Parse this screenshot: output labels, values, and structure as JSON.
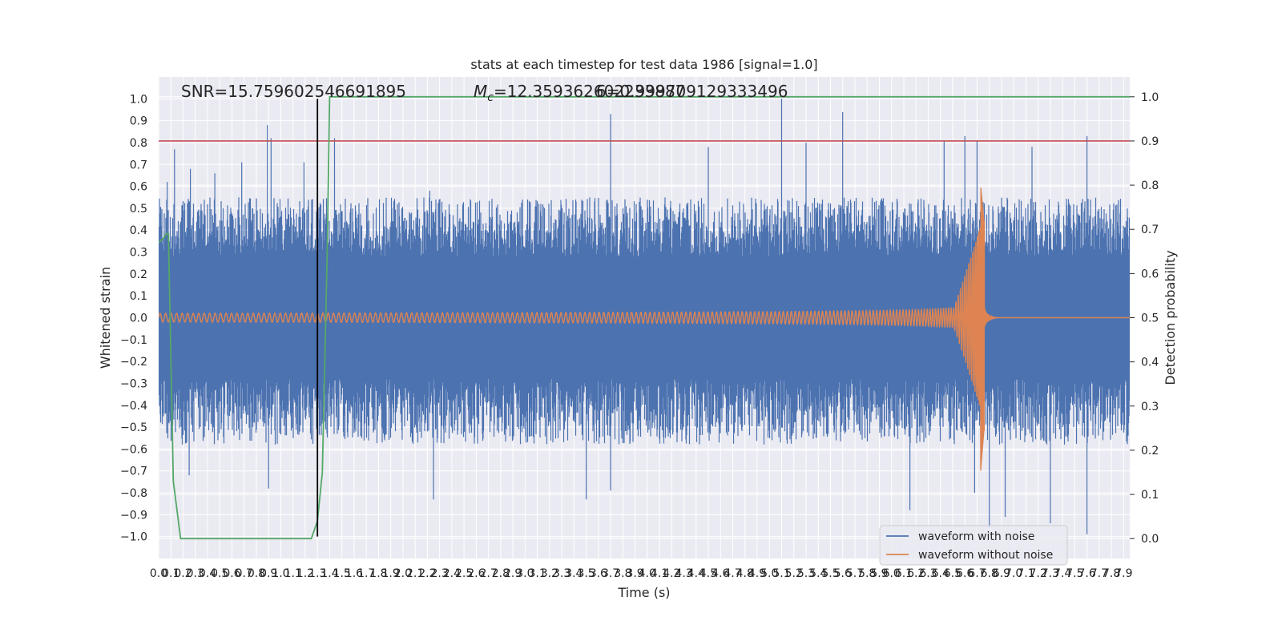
{
  "chart_data": {
    "type": "line",
    "title": "stats at each timestep for test data 1986 [signal=1.0]",
    "xlabel": "Time (s)",
    "ylabel": "Whitened strain",
    "y2label": "Detection probability",
    "xlim": [
      0.0,
      7.95
    ],
    "ylim": [
      -1.1,
      1.1
    ],
    "y2lim": [
      -0.045,
      1.045
    ],
    "x_ticks": [
      0.0,
      0.1,
      0.2,
      0.3,
      0.4,
      0.5,
      0.6,
      0.7,
      0.8,
      0.9,
      1.0,
      1.1,
      1.2,
      1.3,
      1.4,
      1.5,
      1.6,
      1.7,
      1.8,
      1.9,
      2.0,
      2.1,
      2.2,
      2.3,
      2.4,
      2.5,
      2.6,
      2.7,
      2.8,
      2.9,
      3.0,
      3.1,
      3.2,
      3.3,
      3.4,
      3.5,
      3.6,
      3.7,
      3.8,
      3.9,
      4.0,
      4.1,
      4.2,
      4.3,
      4.4,
      4.5,
      4.6,
      4.7,
      4.8,
      4.9,
      5.0,
      5.1,
      5.2,
      5.3,
      5.4,
      5.5,
      5.6,
      5.7,
      5.8,
      5.9,
      6.0,
      6.1,
      6.2,
      6.3,
      6.4,
      6.5,
      6.6,
      6.7,
      6.8,
      6.9,
      7.0,
      7.1,
      7.2,
      7.3,
      7.4,
      7.5,
      7.6,
      7.7,
      7.8,
      7.9
    ],
    "x_tick_labels": [
      "0.0",
      "0.1",
      "0.2",
      "0.3",
      "0.4",
      "0.5",
      "0.6",
      "0.7",
      "0.8",
      "0.9",
      "1.0",
      "1.1",
      "1.2",
      "1.3",
      "1.4",
      "1.5",
      "1.6",
      "1.7",
      "1.8",
      "1.9",
      "2.0",
      "2.1",
      "2.2",
      "2.3",
      "2.4",
      "2.5",
      "2.6",
      "2.7",
      "2.8",
      "2.9",
      "3.0",
      "3.1",
      "3.2",
      "3.3",
      "3.4",
      "3.5",
      "3.6",
      "3.7",
      "3.8",
      "3.9",
      "4.0",
      "4.1",
      "4.2",
      "4.3",
      "4.4",
      "4.5",
      "4.6",
      "4.7",
      "4.8",
      "4.9",
      "5.0",
      "5.1",
      "5.2",
      "5.3",
      "5.4",
      "5.5",
      "5.6",
      "5.7",
      "5.8",
      "5.9",
      "6.0",
      "6.1",
      "6.2",
      "6.3",
      "6.4",
      "6.5",
      "6.6",
      "6.7",
      "6.8",
      "6.9",
      "7.0",
      "7.1",
      "7.2",
      "7.3",
      "7.4",
      "7.5",
      "7.6",
      "7.7",
      "7.8",
      "7.9"
    ],
    "y_ticks": [
      1.0,
      0.9,
      0.8,
      0.7,
      0.6,
      0.5,
      0.4,
      0.3,
      0.2,
      0.1,
      0.0,
      -0.1,
      -0.2,
      -0.3,
      -0.4,
      -0.5,
      -0.6,
      -0.7,
      -0.8,
      -0.9,
      -1.0
    ],
    "y_tick_labels": [
      "1.0",
      "0.9",
      "0.8",
      "0.7",
      "0.6",
      "0.5",
      "0.4",
      "0.3",
      "0.2",
      "0.1",
      "0.0",
      "−0.1",
      "−0.2",
      "−0.3",
      "−0.4",
      "−0.5",
      "−0.6",
      "−0.7",
      "−0.8",
      "−0.9",
      "−1.0"
    ],
    "y2_ticks": [
      1.0,
      0.9,
      0.8,
      0.7,
      0.6,
      0.5,
      0.4,
      0.3,
      0.2,
      0.1,
      0.0
    ],
    "y2_tick_labels": [
      "1.0",
      "0.9",
      "0.8",
      "0.7",
      "0.6",
      "0.5",
      "0.4",
      "0.3",
      "0.2",
      "0.1",
      "0.0"
    ],
    "annotations": {
      "snr": "SNR=15.759602546691895",
      "mc_symbol": "M",
      "mc_subscript": "c",
      "mc_value": "=12.359362602233887",
      "mc_overlap": "6=0.999709129333496"
    },
    "series": [
      {
        "name": "waveform with noise",
        "color": "#4c72b0",
        "axis": "left",
        "kind": "noise",
        "envelope_approx": [
          0.55,
          0.6
        ],
        "spikes": [
          {
            "x": 0.07,
            "y": 0.62
          },
          {
            "x": 0.13,
            "y": 0.77
          },
          {
            "x": 0.26,
            "y": 0.68
          },
          {
            "x": 0.46,
            "y": 0.66
          },
          {
            "x": 0.68,
            "y": 0.71
          },
          {
            "x": 0.89,
            "y": 0.88
          },
          {
            "x": 0.92,
            "y": 0.82
          },
          {
            "x": 1.19,
            "y": 0.71
          },
          {
            "x": 1.44,
            "y": 0.82
          },
          {
            "x": 2.22,
            "y": 0.58
          },
          {
            "x": 3.7,
            "y": 0.93
          },
          {
            "x": 4.5,
            "y": 0.78
          },
          {
            "x": 5.1,
            "y": 1.0
          },
          {
            "x": 5.3,
            "y": 0.8
          },
          {
            "x": 5.6,
            "y": 0.94
          },
          {
            "x": 6.43,
            "y": 0.81
          },
          {
            "x": 6.6,
            "y": 0.83
          },
          {
            "x": 6.7,
            "y": 0.81
          },
          {
            "x": 7.15,
            "y": 0.78
          },
          {
            "x": 7.6,
            "y": 0.83
          },
          {
            "x": 0.25,
            "y": -0.72
          },
          {
            "x": 0.9,
            "y": -0.78
          },
          {
            "x": 1.3,
            "y": -0.92
          },
          {
            "x": 2.25,
            "y": -0.83
          },
          {
            "x": 3.5,
            "y": -0.83
          },
          {
            "x": 3.7,
            "y": -0.79
          },
          {
            "x": 6.15,
            "y": -0.88
          },
          {
            "x": 6.68,
            "y": -0.8
          },
          {
            "x": 6.8,
            "y": -0.96
          },
          {
            "x": 6.93,
            "y": -0.91
          },
          {
            "x": 7.3,
            "y": -0.94
          },
          {
            "x": 7.6,
            "y": -0.99
          }
        ]
      },
      {
        "name": "waveform without noise",
        "color": "#dd8452",
        "axis": "left",
        "kind": "chirp",
        "merger_time": 6.76,
        "start_amplitude": 0.02,
        "peak_amplitude": 0.6,
        "min_amplitude": -0.7
      },
      {
        "name": "Detection probability",
        "color": "#55a868",
        "axis": "right",
        "x": [
          0.0,
          0.04,
          0.06,
          0.08,
          0.12,
          0.18,
          0.3,
          0.6,
          1.0,
          1.25,
          1.3,
          1.34,
          1.38,
          1.4,
          1.45,
          2.0,
          4.0,
          6.0,
          7.95
        ],
        "values": [
          0.67,
          0.68,
          0.69,
          0.69,
          0.13,
          0.0,
          0.0,
          0.0,
          0.0,
          0.0,
          0.04,
          0.15,
          0.65,
          1.0,
          1.0,
          1.0,
          1.0,
          1.0,
          1.0
        ]
      },
      {
        "name": "threshold",
        "color": "#c44e52",
        "axis": "right",
        "kind": "hline",
        "value": 0.9
      },
      {
        "name": "detection time",
        "color": "#000000",
        "axis": "left",
        "kind": "vline",
        "x": 1.3,
        "y_range": [
          -1.0,
          1.0
        ]
      }
    ],
    "legend": {
      "position": "bottom-right",
      "entries": [
        "waveform with noise",
        "waveform without noise"
      ]
    },
    "grid": true,
    "colors": {
      "plot_bg": "#eaeaf2",
      "grid": "#ffffff",
      "text": "#262626"
    }
  }
}
